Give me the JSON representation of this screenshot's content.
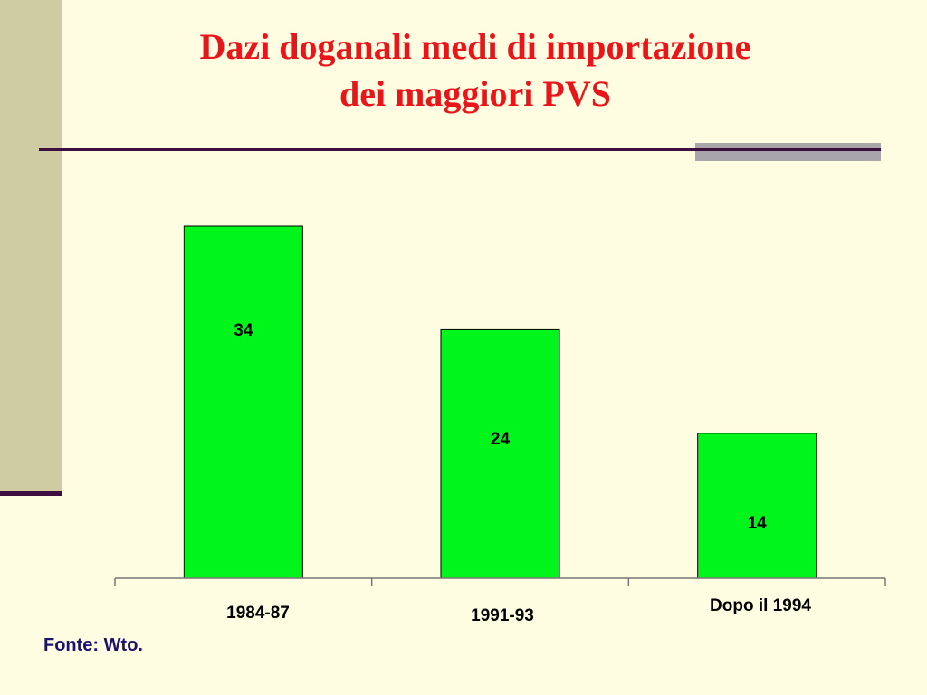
{
  "slide": {
    "title_lines": [
      "Dazi doganali medi di importazione",
      "dei maggiori PVS"
    ],
    "source_note": "Fonte: Wto."
  },
  "colors": {
    "title": "#E8161B",
    "bar_fill": "#00F51A",
    "accent_dark": "#3E0F3E",
    "source_text": "#1C1270"
  },
  "chart_data": {
    "type": "bar",
    "categories": [
      "1984-87",
      "1991-93",
      "Dopo il 1994"
    ],
    "values": [
      34,
      24,
      14
    ],
    "title": "",
    "xlabel": "",
    "ylabel": "",
    "ylim": [
      0,
      34
    ],
    "grid": false,
    "legend": "none",
    "data_labels": [
      "34",
      "24",
      "14"
    ]
  }
}
